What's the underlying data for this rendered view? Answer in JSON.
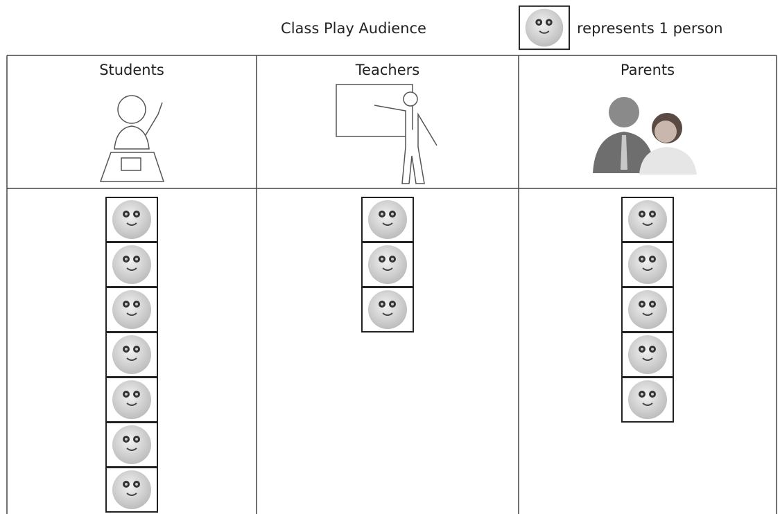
{
  "chart_data": {
    "type": "pictograph",
    "title": "Class Play Audience",
    "key_label": "represents 1 person",
    "categories": [
      "Students",
      "Teachers",
      "Parents"
    ],
    "values": [
      7,
      3,
      5
    ]
  }
}
